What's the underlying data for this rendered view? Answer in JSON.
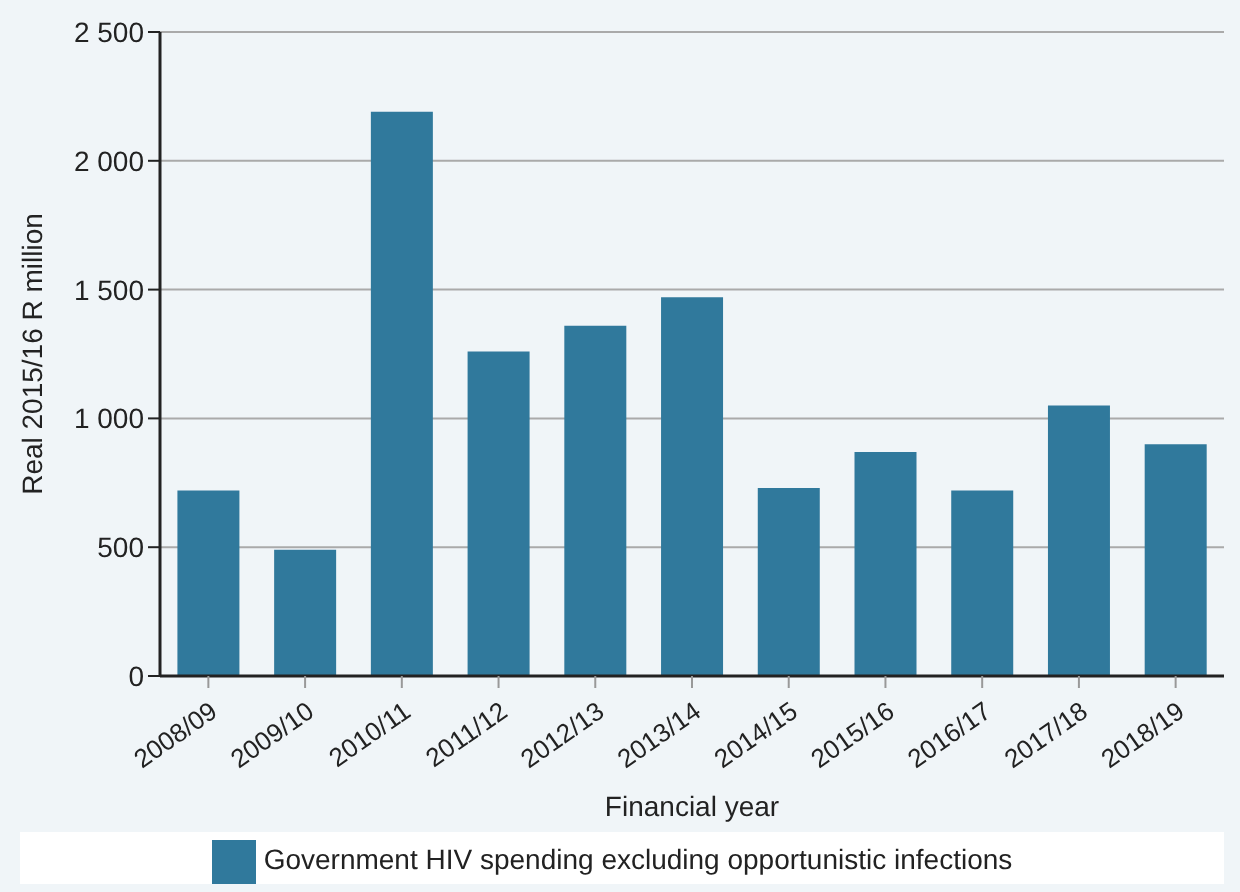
{
  "chart_data": {
    "type": "bar",
    "xlabel": "Financial year",
    "ylabel": "Real 2015/16 R million",
    "categories": [
      "2008/09",
      "2009/10",
      "2010/11",
      "2011/12",
      "2012/13",
      "2013/14",
      "2014/15",
      "2015/16",
      "2016/17",
      "2017/18",
      "2018/19"
    ],
    "series": [
      {
        "name": "Government HIV spending excluding opportunistic infections",
        "color": "#30799c",
        "values": [
          720,
          490,
          2190,
          1260,
          1360,
          1470,
          730,
          870,
          720,
          1050,
          900
        ]
      }
    ],
    "ylim": [
      0,
      2500
    ],
    "yticks": [
      0,
      500,
      {
        "value": 1000,
        "label": "1 000"
      },
      {
        "value": 1500,
        "label": "1 500"
      },
      {
        "value": 2000,
        "label": "2 000"
      },
      {
        "value": 2500,
        "label": "2 500"
      }
    ],
    "grid": "y",
    "legend": "bottom"
  }
}
